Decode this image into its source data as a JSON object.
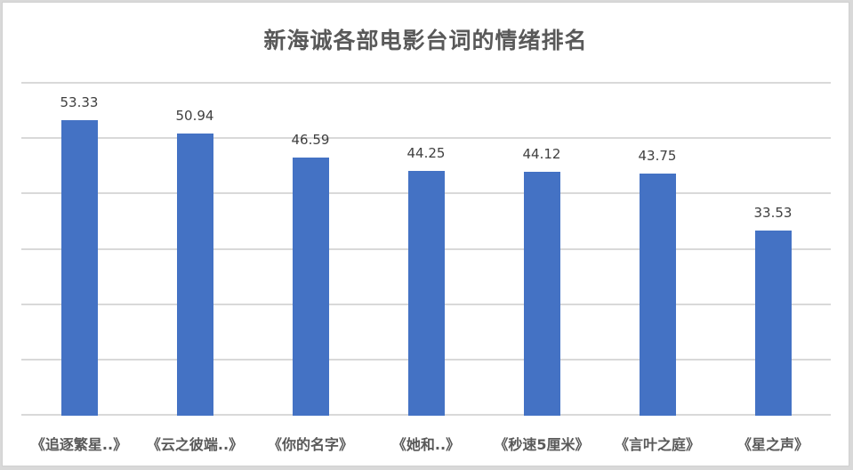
{
  "title": "新海诚各部电影台词的情绪排名",
  "colors": {
    "bar": "#4472c4",
    "grid": "#d9d9d9",
    "text": "#595959"
  },
  "chart_data": {
    "type": "bar",
    "title": "新海诚各部电影台词的情绪排名",
    "xlabel": "",
    "ylabel": "",
    "categories": [
      "《追逐繁星..》",
      "《云之彼端..》",
      "《你的名字》",
      "《她和..》",
      "《秒速5厘米》",
      "《言叶之庭》",
      "《星之声》"
    ],
    "values": [
      53.33,
      50.94,
      46.59,
      44.25,
      44.12,
      43.75,
      33.53
    ],
    "value_labels": [
      "53.33",
      "50.94",
      "46.59",
      "44.25",
      "44.12",
      "43.75",
      "33.53"
    ],
    "ylim": [
      0,
      60
    ],
    "gridlines": [
      0,
      10,
      20,
      30,
      40,
      50,
      60
    ],
    "grid": true,
    "y_axis_tick_labels_visible": false,
    "legend": "none",
    "data_labels": "outside_end"
  }
}
